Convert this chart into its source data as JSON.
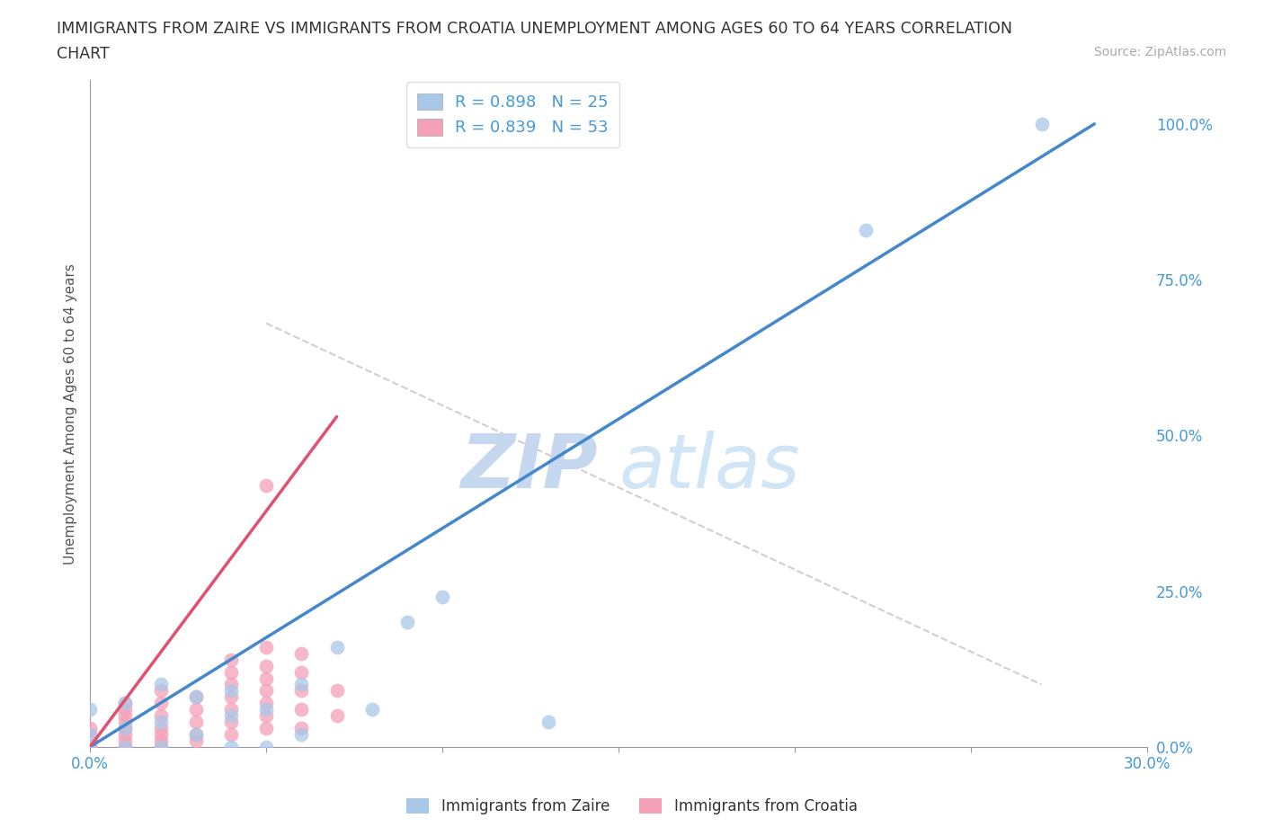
{
  "title_line1": "IMMIGRANTS FROM ZAIRE VS IMMIGRANTS FROM CROATIA UNEMPLOYMENT AMONG AGES 60 TO 64 YEARS CORRELATION",
  "title_line2": "CHART",
  "source": "Source: ZipAtlas.com",
  "ylabel": "Unemployment Among Ages 60 to 64 years",
  "xlim": [
    0.0,
    0.3
  ],
  "ylim": [
    0.0,
    1.07
  ],
  "x_ticks": [
    0.0,
    0.05,
    0.1,
    0.15,
    0.2,
    0.25,
    0.3
  ],
  "x_tick_labels": [
    "0.0%",
    "",
    "",
    "",
    "",
    "",
    "30.0%"
  ],
  "y_ticks_right": [
    0.0,
    0.25,
    0.5,
    0.75,
    1.0
  ],
  "y_tick_labels_right": [
    "0.0%",
    "25.0%",
    "50.0%",
    "75.0%",
    "100.0%"
  ],
  "zaire_color": "#a8c8e8",
  "croatia_color": "#f4a0b8",
  "zaire_line_color": "#4488cc",
  "croatia_line_color": "#e05070",
  "R_zaire": 0.898,
  "N_zaire": 25,
  "R_croatia": 0.839,
  "N_croatia": 53,
  "bg_color": "#ffffff",
  "grid_color": "#cccccc",
  "watermark_zip": "ZIP",
  "watermark_atlas": "atlas",
  "watermark_color": "#ccddf0",
  "zaire_scatter_x": [
    0.0,
    0.0,
    0.0,
    0.01,
    0.01,
    0.01,
    0.02,
    0.02,
    0.02,
    0.03,
    0.03,
    0.04,
    0.04,
    0.04,
    0.05,
    0.05,
    0.06,
    0.06,
    0.07,
    0.08,
    0.09,
    0.1,
    0.13,
    0.22,
    0.27
  ],
  "zaire_scatter_y": [
    0.0,
    0.02,
    0.06,
    0.0,
    0.03,
    0.07,
    0.0,
    0.04,
    0.1,
    0.02,
    0.08,
    0.0,
    0.05,
    0.09,
    0.0,
    0.06,
    0.02,
    0.1,
    0.16,
    0.06,
    0.2,
    0.24,
    0.04,
    0.83,
    1.0
  ],
  "croatia_scatter_x": [
    0.0,
    0.0,
    0.0,
    0.0,
    0.0,
    0.0,
    0.0,
    0.0,
    0.0,
    0.0,
    0.01,
    0.01,
    0.01,
    0.01,
    0.01,
    0.01,
    0.01,
    0.01,
    0.01,
    0.02,
    0.02,
    0.02,
    0.02,
    0.02,
    0.02,
    0.02,
    0.03,
    0.03,
    0.03,
    0.03,
    0.03,
    0.04,
    0.04,
    0.04,
    0.04,
    0.04,
    0.04,
    0.04,
    0.05,
    0.05,
    0.05,
    0.05,
    0.05,
    0.05,
    0.05,
    0.05,
    0.06,
    0.06,
    0.06,
    0.06,
    0.06,
    0.07,
    0.07
  ],
  "croatia_scatter_y": [
    0.0,
    0.0,
    0.0,
    0.0,
    0.0,
    0.0,
    0.01,
    0.01,
    0.02,
    0.03,
    0.0,
    0.0,
    0.01,
    0.02,
    0.03,
    0.04,
    0.05,
    0.06,
    0.07,
    0.0,
    0.01,
    0.02,
    0.03,
    0.05,
    0.07,
    0.09,
    0.01,
    0.02,
    0.04,
    0.06,
    0.08,
    0.02,
    0.04,
    0.06,
    0.08,
    0.1,
    0.12,
    0.14,
    0.03,
    0.05,
    0.07,
    0.09,
    0.11,
    0.13,
    0.16,
    0.42,
    0.03,
    0.06,
    0.09,
    0.12,
    0.15,
    0.05,
    0.09
  ],
  "zaire_line_x0": 0.0,
  "zaire_line_y0": 0.0,
  "zaire_line_x1": 0.285,
  "zaire_line_y1": 1.0,
  "croatia_line_x0": 0.0,
  "croatia_line_y0": 0.0,
  "croatia_line_x1": 0.07,
  "croatia_line_y1": 0.53,
  "ref_line_x0": 0.05,
  "ref_line_y0": 0.68,
  "ref_line_x1": 0.27,
  "ref_line_y1": 0.1
}
